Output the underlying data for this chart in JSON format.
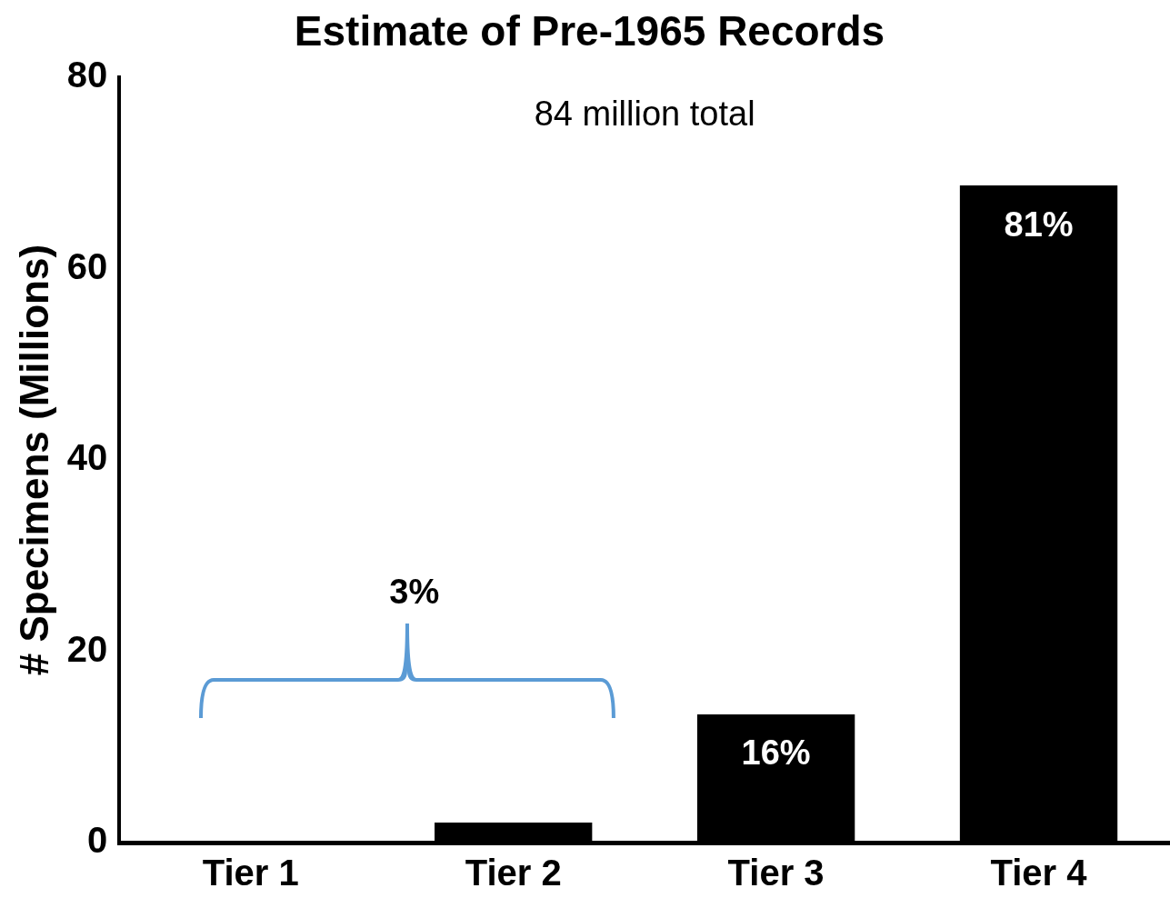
{
  "chart_data": {
    "type": "bar",
    "title": "Estimate of Pre-1965 Records",
    "ylabel": "# Specimens (Millions)",
    "categories": [
      "Tier 1",
      "Tier 2",
      "Tier 3",
      "Tier 4"
    ],
    "values": [
      0,
      2.1,
      13.4,
      68.7
    ],
    "color": "#000000",
    "ylim": [
      0,
      80
    ],
    "yticks": [
      0,
      20,
      40,
      60,
      80
    ],
    "grid": false,
    "legend": false,
    "annotations": [
      "84 million total",
      "3%",
      {
        "text": "16%",
        "x": "Tier 3",
        "y": 13.4
      },
      {
        "text": "81%",
        "x": "Tier 4",
        "y": 68.7
      }
    ]
  }
}
